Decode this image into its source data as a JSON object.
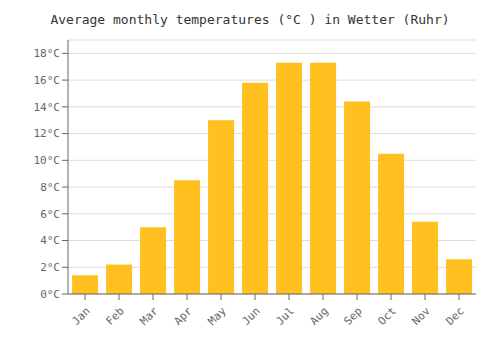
{
  "chart_data": {
    "type": "bar",
    "title": "Average monthly temperatures (°C ) in Wetter (Ruhr)",
    "categories": [
      "Jan",
      "Feb",
      "Mar",
      "Apr",
      "May",
      "Jun",
      "Jul",
      "Aug",
      "Sep",
      "Oct",
      "Nov",
      "Dec"
    ],
    "values": [
      1.4,
      2.2,
      5.0,
      8.5,
      13.0,
      15.8,
      17.3,
      17.3,
      14.4,
      10.5,
      5.4,
      2.6
    ],
    "color": "#FFC020",
    "ylim": [
      0,
      19
    ],
    "yticks": [
      {
        "value": 0,
        "label": "0°C"
      },
      {
        "value": 2,
        "label": "2°C"
      },
      {
        "value": 4,
        "label": "4°C"
      },
      {
        "value": 6,
        "label": "6°C"
      },
      {
        "value": 8,
        "label": "8°C"
      },
      {
        "value": 10,
        "label": "10°C"
      },
      {
        "value": 12,
        "label": "12°C"
      },
      {
        "value": 14,
        "label": "14°C"
      },
      {
        "value": 16,
        "label": "16°C"
      },
      {
        "value": 18,
        "label": "18°C"
      }
    ],
    "grid": true
  }
}
